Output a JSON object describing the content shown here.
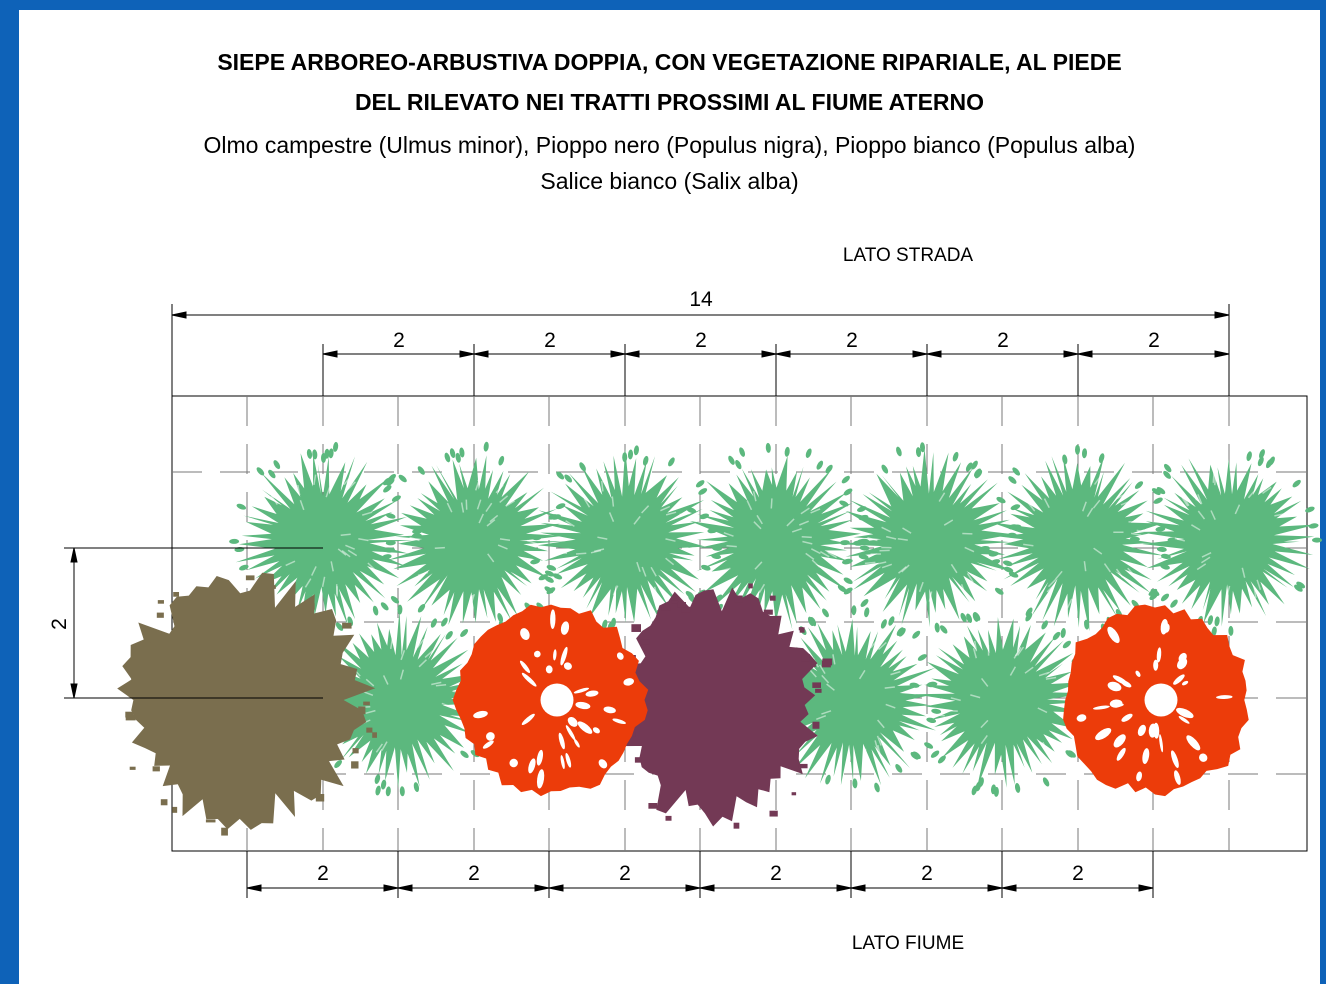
{
  "title": {
    "line1": "SIEPE ARBOREO-ARBUSTIVA DOPPIA, CON VEGETAZIONE RIPARIALE, AL PIEDE",
    "line2": "DEL RILEVATO NEI TRATTI PROSSIMI AL FIUME ATERNO"
  },
  "species": {
    "line1": "Olmo campestre (Ulmus minor), Pioppo nero (Populus nigra), Pioppo bianco (Populus alba)",
    "line2": "Salice bianco (Salix alba)"
  },
  "labels": {
    "road_side": "LATO STRADA",
    "river_side": "LATO FIUME"
  },
  "dimensions": {
    "total_length": "14",
    "top_spacings": [
      "2",
      "2",
      "2",
      "2",
      "2",
      "2"
    ],
    "bottom_spacings": [
      "2",
      "2",
      "2",
      "2",
      "2",
      "2"
    ],
    "row_spacing": "2"
  },
  "colors": {
    "frame": "#0e62b8",
    "shrub": "#5cb87e",
    "olmo": "#7a6e4e",
    "pioppo": "#ec3c0a",
    "salice": "#733955"
  }
}
